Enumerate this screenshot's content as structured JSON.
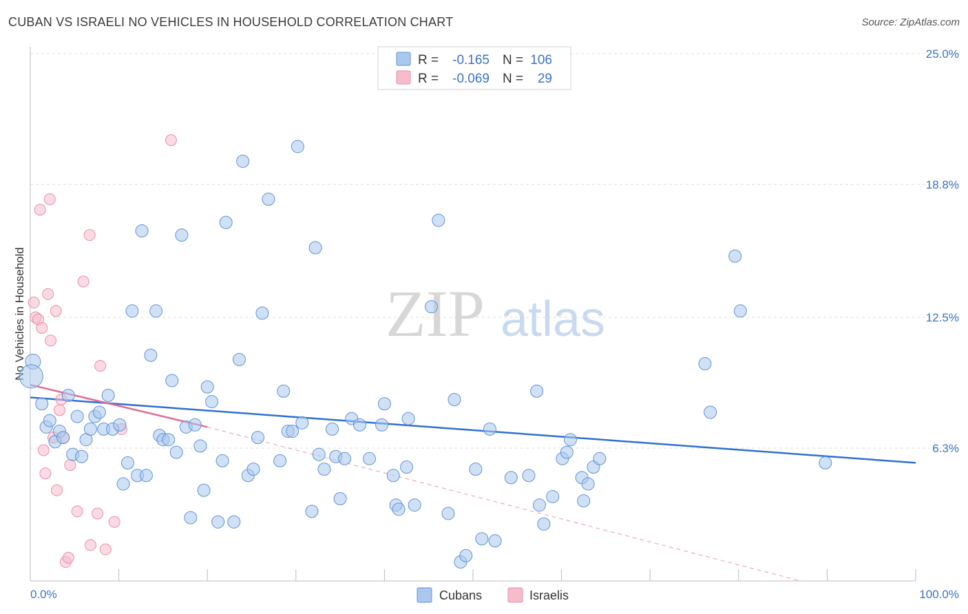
{
  "title": "CUBAN VS ISRAELI NO VEHICLES IN HOUSEHOLD CORRELATION CHART",
  "source": "Source: ZipAtlas.com",
  "watermark": {
    "zip": "ZIP",
    "atlas": "atlas"
  },
  "colors": {
    "blue_fill": "#aac8ee",
    "blue_stroke": "#5e92d6",
    "blue_line": "#2f6fcf",
    "pink_fill": "#f6bccc",
    "pink_stroke": "#e88ea8",
    "pink_line": "#e06c96",
    "grid": "#dddddd",
    "tick_label": "#3a72c4"
  },
  "legend": [
    {
      "r_label": "R =",
      "r_value": "-0.165",
      "n_label": "N =",
      "n_value": "106",
      "series": "Cubans"
    },
    {
      "r_label": "R =",
      "r_value": "-0.069",
      "n_label": "N =",
      "n_value": "29",
      "series": "Israelis"
    }
  ],
  "chart_data": {
    "type": "scatter",
    "title": "CUBAN VS ISRAELI NO VEHICLES IN HOUSEHOLD CORRELATION CHART",
    "xlabel": "",
    "ylabel": "No Vehicles in Household",
    "xlim": [
      0,
      100
    ],
    "ylim": [
      0,
      25.5
    ],
    "x_tick_labels": [
      "0.0%",
      "100.0%"
    ],
    "y_ticks": [
      6.3,
      12.5,
      18.8,
      25.0
    ],
    "y_tick_labels": [
      "6.3%",
      "12.5%",
      "18.8%",
      "25.0%"
    ],
    "x_minor_ticks": [
      10,
      20,
      30,
      40,
      50,
      60,
      70,
      80,
      90,
      100
    ],
    "grid": true,
    "legend_position": "top-center",
    "series": [
      {
        "name": "Cubans",
        "trend": {
          "x": [
            0,
            100
          ],
          "y": [
            8.7,
            5.6
          ],
          "style": "solid"
        },
        "points": [
          [
            0.3,
            10.4
          ],
          [
            0.1,
            9.7
          ],
          [
            1.3,
            8.4
          ],
          [
            1.8,
            7.3
          ],
          [
            2.2,
            7.6
          ],
          [
            2.8,
            6.6
          ],
          [
            3.3,
            7.1
          ],
          [
            3.7,
            6.8
          ],
          [
            4.3,
            8.8
          ],
          [
            4.8,
            6.0
          ],
          [
            5.3,
            7.8
          ],
          [
            5.8,
            5.9
          ],
          [
            6.3,
            6.7
          ],
          [
            6.8,
            7.2
          ],
          [
            7.3,
            7.8
          ],
          [
            7.8,
            8.0
          ],
          [
            8.3,
            7.2
          ],
          [
            8.8,
            8.8
          ],
          [
            9.3,
            7.2
          ],
          [
            10.1,
            7.4
          ],
          [
            10.5,
            4.6
          ],
          [
            11.0,
            5.6
          ],
          [
            11.5,
            12.8
          ],
          [
            12.1,
            5.0
          ],
          [
            12.6,
            16.6
          ],
          [
            13.1,
            5.0
          ],
          [
            13.6,
            10.7
          ],
          [
            14.2,
            12.8
          ],
          [
            14.6,
            6.9
          ],
          [
            15.0,
            6.7
          ],
          [
            15.6,
            6.7
          ],
          [
            16.0,
            9.5
          ],
          [
            16.5,
            6.1
          ],
          [
            17.1,
            16.4
          ],
          [
            17.6,
            7.3
          ],
          [
            18.1,
            3.0
          ],
          [
            18.6,
            7.4
          ],
          [
            19.2,
            6.4
          ],
          [
            19.6,
            4.3
          ],
          [
            20.0,
            9.2
          ],
          [
            20.5,
            8.5
          ],
          [
            21.2,
            2.8
          ],
          [
            21.7,
            5.7
          ],
          [
            22.1,
            17.0
          ],
          [
            23.0,
            2.8
          ],
          [
            23.6,
            10.5
          ],
          [
            24.0,
            19.9
          ],
          [
            24.6,
            5.0
          ],
          [
            25.2,
            5.3
          ],
          [
            25.7,
            6.8
          ],
          [
            26.2,
            12.7
          ],
          [
            26.9,
            18.1
          ],
          [
            28.2,
            5.7
          ],
          [
            28.6,
            9.0
          ],
          [
            29.1,
            7.1
          ],
          [
            29.6,
            7.1
          ],
          [
            30.2,
            20.6
          ],
          [
            30.7,
            7.5
          ],
          [
            31.8,
            3.3
          ],
          [
            32.2,
            15.8
          ],
          [
            32.6,
            6.0
          ],
          [
            33.2,
            5.3
          ],
          [
            34.1,
            7.2
          ],
          [
            34.5,
            5.9
          ],
          [
            35.0,
            3.9
          ],
          [
            35.5,
            5.8
          ],
          [
            36.3,
            7.7
          ],
          [
            37.2,
            7.4
          ],
          [
            38.3,
            5.8
          ],
          [
            39.7,
            7.4
          ],
          [
            40.0,
            8.4
          ],
          [
            41.0,
            5.0
          ],
          [
            41.3,
            3.6
          ],
          [
            41.6,
            3.4
          ],
          [
            42.5,
            5.4
          ],
          [
            42.7,
            7.7
          ],
          [
            43.4,
            3.6
          ],
          [
            45.3,
            13.0
          ],
          [
            46.1,
            17.1
          ],
          [
            47.2,
            3.2
          ],
          [
            47.9,
            8.6
          ],
          [
            48.6,
            0.9
          ],
          [
            49.2,
            1.2
          ],
          [
            50.3,
            5.3
          ],
          [
            51.0,
            2.0
          ],
          [
            51.9,
            7.2
          ],
          [
            52.5,
            1.9
          ],
          [
            54.3,
            4.9
          ],
          [
            56.3,
            5.0
          ],
          [
            57.2,
            9.0
          ],
          [
            57.5,
            3.6
          ],
          [
            58.0,
            2.7
          ],
          [
            59.0,
            4.0
          ],
          [
            60.1,
            5.8
          ],
          [
            60.6,
            6.1
          ],
          [
            61.0,
            6.7
          ],
          [
            62.3,
            4.9
          ],
          [
            62.5,
            3.8
          ],
          [
            63.0,
            4.6
          ],
          [
            63.6,
            5.4
          ],
          [
            64.3,
            5.8
          ],
          [
            76.2,
            10.3
          ],
          [
            76.8,
            8.0
          ],
          [
            79.6,
            15.4
          ],
          [
            80.2,
            12.8
          ],
          [
            89.8,
            5.6
          ]
        ]
      },
      {
        "name": "Israelis",
        "trend": {
          "x": [
            0,
            20
          ],
          "y": [
            9.3,
            7.3
          ],
          "style": "solid"
        },
        "trend_extension": {
          "x": [
            20,
            87
          ],
          "y": [
            7.3,
            0
          ],
          "style": "dashed"
        },
        "points": [
          [
            0.4,
            13.2
          ],
          [
            0.6,
            12.5
          ],
          [
            0.9,
            12.4
          ],
          [
            1.1,
            17.6
          ],
          [
            1.3,
            12.0
          ],
          [
            1.5,
            6.2
          ],
          [
            1.7,
            5.1
          ],
          [
            2.0,
            13.6
          ],
          [
            2.2,
            18.1
          ],
          [
            2.3,
            11.4
          ],
          [
            2.6,
            6.8
          ],
          [
            2.9,
            12.8
          ],
          [
            3.0,
            4.3
          ],
          [
            3.3,
            8.1
          ],
          [
            3.5,
            8.6
          ],
          [
            3.8,
            6.8
          ],
          [
            4.0,
            0.9
          ],
          [
            4.3,
            1.1
          ],
          [
            4.5,
            5.5
          ],
          [
            5.3,
            3.3
          ],
          [
            6.0,
            14.2
          ],
          [
            6.7,
            16.4
          ],
          [
            6.8,
            1.7
          ],
          [
            7.6,
            3.2
          ],
          [
            7.9,
            10.2
          ],
          [
            8.5,
            1.5
          ],
          [
            9.5,
            2.8
          ],
          [
            10.3,
            7.2
          ],
          [
            15.9,
            20.9
          ]
        ]
      }
    ]
  }
}
